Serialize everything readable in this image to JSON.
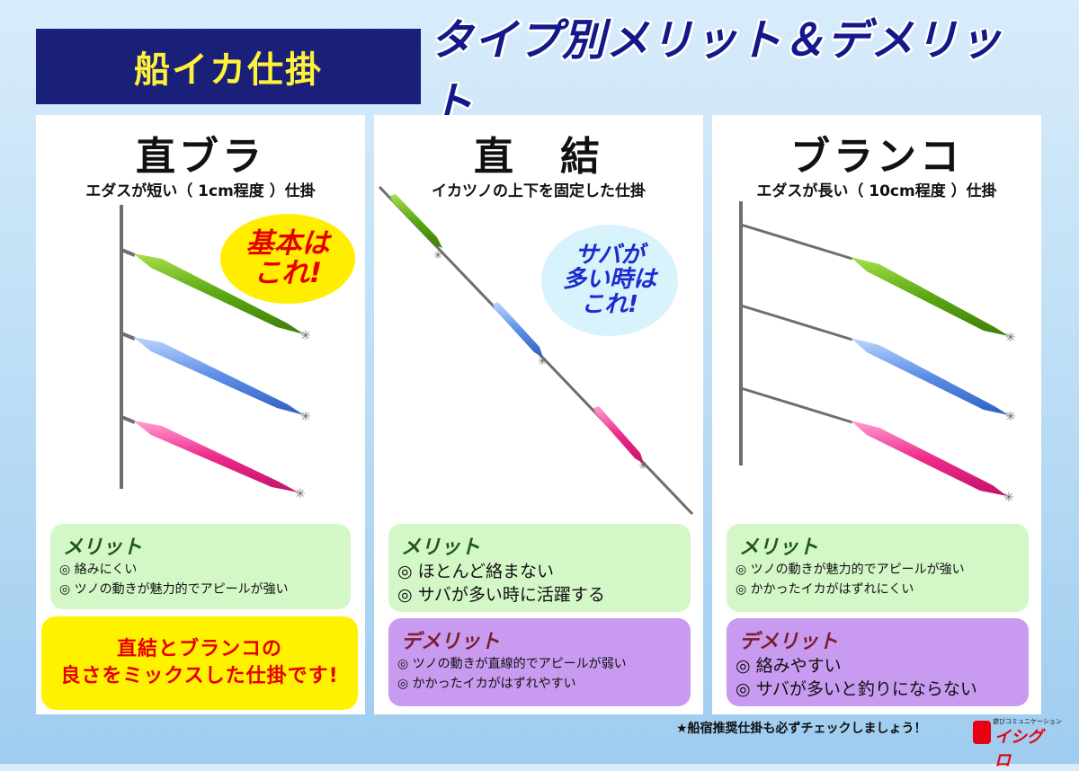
{
  "header": {
    "left_title": "船イカ仕掛",
    "right_title": "タイプ別メリット＆デメリット"
  },
  "panels": [
    {
      "title": "直ブラ",
      "subtitle": "エダスが短い（ 1cm程度 ）仕掛",
      "badge_lines": [
        "基本は",
        "これ!"
      ],
      "merit_title": "メリット",
      "merits": [
        "◎ 絡みにくい",
        "◎ ツノの動きが魅力的でアピールが強い"
      ],
      "mix_lines": [
        "直結とブランコの",
        "良さをミックスした仕掛です!"
      ]
    },
    {
      "title": "直　結",
      "subtitle": "イカツノの上下を固定した仕掛",
      "badge_lines": [
        "サバが",
        "多い時は",
        "これ!"
      ],
      "merit_title": "メリット",
      "merits": [
        "◎ ほとんど絡まない",
        "◎ サバが多い時に活躍する"
      ],
      "demerit_title": "デメリット",
      "demerits": [
        "◎ ツノの動きが直線的でアピールが弱い",
        "◎ かかったイカがはずれやすい"
      ]
    },
    {
      "title": "ブランコ",
      "subtitle": "エダスが長い（ 10cm程度 ）仕掛",
      "merit_title": "メリット",
      "merits": [
        "◎ ツノの動きが魅力的でアピールが強い",
        "◎ かかったイカがはずれにくい"
      ],
      "demerit_title": "デメリット",
      "demerits": [
        "◎ 絡みやすい",
        "◎ サバが多いと釣りにならない"
      ]
    }
  ],
  "footer": {
    "note": "★船宿推奨仕掛も必ずチェックしましょう！",
    "logo_small": "遊びコミュニケーション",
    "logo_main": "イシグロ"
  },
  "colors": {
    "title_bg": "#1a1f7a",
    "title_text": "#fff23a",
    "heading_text": "#14188a",
    "jig_green": "#6cbf1a",
    "jig_blue": "#5b8ee6",
    "jig_pink": "#ee2a8a",
    "line_gray": "#6e6e6e",
    "merit_bg": "#d4f7c8",
    "demerit_bg": "#c89af0",
    "mix_bg": "#fff200",
    "badge_yellow": "#ffee00",
    "badge_lightblue": "#d8f3fb"
  }
}
